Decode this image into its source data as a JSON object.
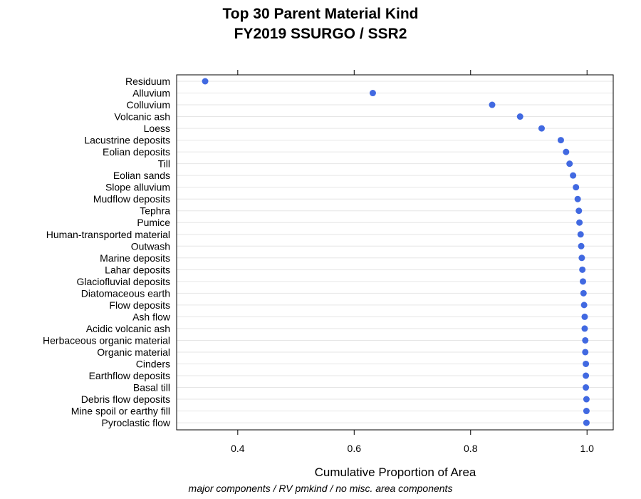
{
  "chart_data": {
    "type": "scatter",
    "title": "Top 30 Parent Material Kind",
    "subtitle": "FY2019 SSURGO / SSR2",
    "xlabel": "Cumulative Proportion of Area",
    "ylabel": "",
    "footnote": "major components / RV pmkind / no misc. area components",
    "xlim": [
      0.295,
      1.045
    ],
    "xticks": [
      {
        "value": 0.4,
        "label": "0.4"
      },
      {
        "value": 0.6,
        "label": "0.6"
      },
      {
        "value": 0.8,
        "label": "0.8"
      },
      {
        "value": 1.0,
        "label": "1.0"
      }
    ],
    "grid": "horizontal",
    "marker_color": "#4169E1",
    "categories": [
      "Residuum",
      "Alluvium",
      "Colluvium",
      "Volcanic ash",
      "Loess",
      "Lacustrine deposits",
      "Eolian deposits",
      "Till",
      "Eolian sands",
      "Slope alluvium",
      "Mudflow deposits",
      "Tephra",
      "Pumice",
      "Human-transported material",
      "Outwash",
      "Marine deposits",
      "Lahar deposits",
      "Glaciofluvial deposits",
      "Diatomaceous earth",
      "Flow deposits",
      "Ash flow",
      "Acidic volcanic ash",
      "Herbaceous organic material",
      "Organic material",
      "Cinders",
      "Earthflow deposits",
      "Basal till",
      "Debris flow deposits",
      "Mine spoil or earthy fill",
      "Pyroclastic flow"
    ],
    "values": [
      0.344,
      0.632,
      0.837,
      0.885,
      0.922,
      0.955,
      0.964,
      0.97,
      0.976,
      0.981,
      0.984,
      0.986,
      0.987,
      0.989,
      0.99,
      0.991,
      0.992,
      0.993,
      0.994,
      0.995,
      0.996,
      0.996,
      0.997,
      0.997,
      0.998,
      0.998,
      0.998,
      0.999,
      0.999,
      0.999
    ]
  }
}
